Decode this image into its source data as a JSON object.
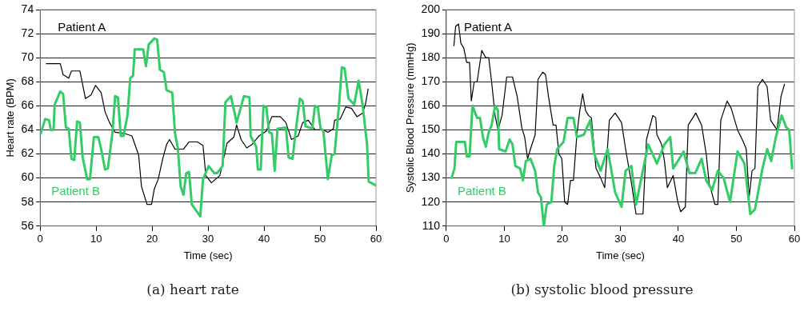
{
  "chart_data": [
    {
      "type": "line",
      "xlabel": "Time (sec)",
      "ylabel": "Heart rate (BPM)",
      "annotations": [
        "(a)  heart rate"
      ],
      "xlim": [
        0,
        60
      ],
      "xticks": [
        0,
        10,
        20,
        30,
        40,
        50,
        60
      ],
      "ylim": [
        56,
        74
      ],
      "yticks": [
        56,
        58,
        60,
        62,
        64,
        66,
        68,
        70,
        72,
        74
      ],
      "grid": "y",
      "legend": false,
      "marker": "none",
      "line_style": "solid",
      "series": [
        {
          "name": "Patient A",
          "color": "#000000",
          "x": [
            1.1,
            3.6,
            4.1,
            5.1,
            5.6,
            7.1,
            8.1,
            9.1,
            9.9,
            10.9,
            11.6,
            12.4,
            13.4,
            15.1,
            16.4,
            17.6,
            18.1,
            19.1,
            19.9,
            20.4,
            21.1,
            21.9,
            22.6,
            23.1,
            24.1,
            25.6,
            26.6,
            28.1,
            29.1,
            29.6,
            30.6,
            32.1,
            33.4,
            34.6,
            35.1,
            35.9,
            36.9,
            37.9,
            39.1,
            40.4,
            41.4,
            42.9,
            43.9,
            44.9,
            46.1,
            46.9,
            47.9,
            49.1,
            50.6,
            51.4,
            52.4,
            52.6,
            53.6,
            54.6,
            55.6,
            56.6,
            57.6,
            58.1,
            58.6
          ],
          "values": [
            69.5,
            69.5,
            68.6,
            68.3,
            68.9,
            68.9,
            66.6,
            66.9,
            67.7,
            67.1,
            65.5,
            64.6,
            63.8,
            63.7,
            63.5,
            61.9,
            59.3,
            57.8,
            57.8,
            59.1,
            59.9,
            61.6,
            62.8,
            63.2,
            62.4,
            62.4,
            63,
            63,
            62.7,
            60.2,
            59.6,
            60.2,
            62.9,
            63.4,
            64.4,
            63.2,
            62.5,
            62.8,
            63.5,
            63.9,
            65.1,
            65.1,
            64.6,
            63.2,
            63.5,
            64.6,
            64.8,
            64,
            64,
            63.8,
            64.1,
            64.8,
            64.9,
            65.9,
            65.8,
            65.1,
            65.4,
            66.1,
            67.4
          ]
        },
        {
          "name": "Patient B",
          "color": "#33cc66",
          "x": [
            0.1,
            0.9,
            1.6,
            1.9,
            2.4,
            2.6,
            3.6,
            4.1,
            4.6,
            5.1,
            5.6,
            6.1,
            6.6,
            7.1,
            7.6,
            8.4,
            8.9,
            9.6,
            10.4,
            10.9,
            11.6,
            12.1,
            12.9,
            13.4,
            13.9,
            14.4,
            14.9,
            15.6,
            16.1,
            16.6,
            16.9,
            18.4,
            18.9,
            19.4,
            20.4,
            20.9,
            21.4,
            22.1,
            22.6,
            23.6,
            24.1,
            24.6,
            25.1,
            25.6,
            26.1,
            26.6,
            27.1,
            28.6,
            29.1,
            30.1,
            31.1,
            31.6,
            32.6,
            33.1,
            34.1,
            35.1,
            36.4,
            37.4,
            37.6,
            38.6,
            38.9,
            39.4,
            39.9,
            40.4,
            40.9,
            41.4,
            41.9,
            42.4,
            43.9,
            44.4,
            45.1,
            45.6,
            46.4,
            46.9,
            47.4,
            48.6,
            49.1,
            49.6,
            50.1,
            50.6,
            51.4,
            52.1,
            52.6,
            53.4,
            53.9,
            54.4,
            55.1,
            56.1,
            56.9,
            57.6,
            58.4,
            58.7,
            59.9
          ],
          "values": [
            63.7,
            64.9,
            64.8,
            64,
            64,
            66.1,
            67.2,
            67,
            64.2,
            64.1,
            61.6,
            61.5,
            64.7,
            64.6,
            61.7,
            59.9,
            59.9,
            63.4,
            63.4,
            62.4,
            60.7,
            60.8,
            63.7,
            66.8,
            66.7,
            63.5,
            63.5,
            65.2,
            68.3,
            68.5,
            70.7,
            70.7,
            69.3,
            71.1,
            71.6,
            71.5,
            69,
            68.8,
            67.3,
            67.1,
            63.7,
            62.5,
            59.3,
            58.6,
            60.4,
            60.5,
            57.8,
            56.8,
            59.9,
            61,
            60.4,
            60.4,
            61,
            66.3,
            66.8,
            64.6,
            66.8,
            66.7,
            63.5,
            62.6,
            60.7,
            60.7,
            66,
            65.9,
            63.8,
            63.7,
            60.6,
            64.1,
            64.2,
            61.7,
            61.6,
            63.7,
            66.6,
            66.4,
            64.3,
            64.1,
            66,
            65.9,
            64.1,
            63.9,
            59.9,
            61.9,
            62,
            66.1,
            69.2,
            69.1,
            66.6,
            66.1,
            68.1,
            66.1,
            62.8,
            59.7,
            59.4
          ]
        }
      ]
    },
    {
      "type": "line",
      "xlabel": "Time (sec)",
      "ylabel": "Systolic Blood Pressure (mmHg)",
      "annotations": [
        "(b)  systolic blood pressure"
      ],
      "xlim": [
        0,
        60
      ],
      "xticks": [
        0,
        10,
        20,
        30,
        40,
        50,
        60
      ],
      "ylim": [
        110,
        200
      ],
      "yticks": [
        110,
        120,
        130,
        140,
        150,
        160,
        170,
        180,
        190,
        200
      ],
      "grid": "y",
      "legend": false,
      "marker": "none",
      "line_style": "solid",
      "series": [
        {
          "name": "Patient A",
          "color": "#000000",
          "x": [
            1.3,
            1.6,
            2.1,
            2.5,
            3,
            3.5,
            4,
            4.3,
            4.8,
            5.3,
            6.1,
            6.8,
            7.3,
            7.8,
            8.4,
            8.9,
            9.6,
            10.4,
            11.4,
            12.2,
            13,
            13.5,
            14,
            14.5,
            15.3,
            15.8,
            16.6,
            17.1,
            17.6,
            18.4,
            18.9,
            19.4,
            19.9,
            20.4,
            20.9,
            21.4,
            21.9,
            22.5,
            23,
            23.5,
            24,
            24.5,
            25,
            25.8,
            26.6,
            27.3,
            28.1,
            29.1,
            30.2,
            30.9,
            31.9,
            32.7,
            33.9,
            34.5,
            35.6,
            36.1,
            36.3,
            37.1,
            37.6,
            38.1,
            39.1,
            39.9,
            40.4,
            41.2,
            41.7,
            43,
            44,
            44.8,
            45.3,
            46.3,
            46.8,
            47.3,
            48.4,
            49.1,
            50.2,
            51.2,
            51.7,
            52.2,
            52.7,
            53.2,
            53.7,
            54.5,
            55.3,
            55.9,
            57,
            57.7,
            58.3
          ],
          "values": [
            185,
            193,
            194,
            186,
            184,
            178,
            178,
            162,
            170,
            170,
            183,
            180,
            180,
            170,
            156,
            150,
            156,
            172,
            172,
            164,
            151,
            147,
            138,
            142,
            148,
            171,
            174,
            173,
            164,
            152,
            152,
            140,
            138,
            120,
            119,
            129,
            129,
            148,
            158,
            165,
            158,
            156,
            155,
            134,
            130,
            126,
            154,
            157,
            153,
            142,
            128,
            115,
            115,
            146,
            156,
            155,
            148,
            144,
            137,
            126,
            131,
            120,
            116,
            118,
            152,
            157,
            152,
            140,
            128,
            119,
            119,
            154,
            162,
            159,
            150,
            145,
            142,
            122,
            133,
            134,
            168,
            171,
            168,
            154,
            150,
            164,
            169
          ]
        },
        {
          "name": "Patient B",
          "color": "#33cc66",
          "x": [
            0.9,
            1.4,
            1.7,
            3.2,
            3.5,
            4,
            4.5,
            5.3,
            5.8,
            6.3,
            6.8,
            7.3,
            7.8,
            8.4,
            8.9,
            9.1,
            10.2,
            10.9,
            11.4,
            11.9,
            12.7,
            13.2,
            13.7,
            14.5,
            15.3,
            15.8,
            16.3,
            16.8,
            17.3,
            18.1,
            18.6,
            19.1,
            20.2,
            20.9,
            21.9,
            22.5,
            23.7,
            24.8,
            25.5,
            26.6,
            27.8,
            28.6,
            29.1,
            30.2,
            30.9,
            31.9,
            32.7,
            33.7,
            34.8,
            36.3,
            37.6,
            38.6,
            39.1,
            39.9,
            40.9,
            41.9,
            42.9,
            44,
            44.8,
            45.8,
            46.8,
            47.8,
            48.9,
            50.2,
            51.4,
            52.4,
            53.2,
            54.5,
            55.3,
            56,
            56.8,
            57.8,
            58.6,
            59.1,
            59.6
          ],
          "values": [
            130,
            134,
            145,
            145,
            139,
            139,
            160,
            155,
            155,
            147,
            143,
            149,
            152,
            160,
            158,
            142,
            141,
            146,
            144,
            135,
            134,
            129,
            137,
            138,
            133,
            124,
            122,
            110,
            119,
            120,
            135,
            142,
            145,
            155,
            155,
            147,
            148,
            154,
            140,
            133,
            142,
            131,
            124,
            118,
            133,
            135,
            119,
            131,
            144,
            136,
            144,
            147,
            134,
            137,
            141,
            132,
            132,
            138,
            129,
            125,
            133,
            130,
            120,
            141,
            136,
            115,
            117,
            134,
            142,
            137,
            147,
            156,
            151,
            150,
            134
          ]
        }
      ]
    }
  ]
}
